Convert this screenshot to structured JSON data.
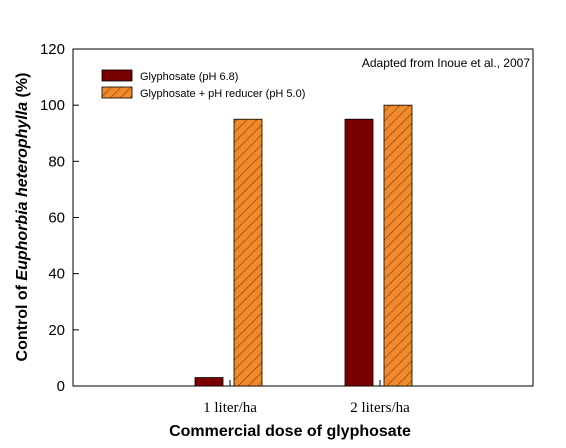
{
  "chart_data": {
    "type": "bar",
    "categories": [
      "1 liter/ha",
      "2 liters/ha"
    ],
    "series": [
      {
        "name": "Glyphosate (pH 6.8)",
        "values": [
          3,
          95
        ],
        "color": "#7a0000",
        "pattern": "solid"
      },
      {
        "name": "Glyphosate + pH reducer (pH 5.0)",
        "values": [
          95,
          100
        ],
        "color": "#f08a2c",
        "pattern": "hatched"
      }
    ],
    "xlabel": "Commercial dose of glyphosate",
    "ylabel_prefix": "Control of ",
    "ylabel_italic": "Euphorbia heterophylla",
    "ylabel_suffix": " (%)",
    "ylim": [
      0,
      120
    ],
    "yticks": [
      0,
      20,
      40,
      60,
      80,
      100,
      120
    ],
    "annotation": "Adapted from Inoue et al., 2007",
    "legend_position": "top-left",
    "grid": false
  }
}
